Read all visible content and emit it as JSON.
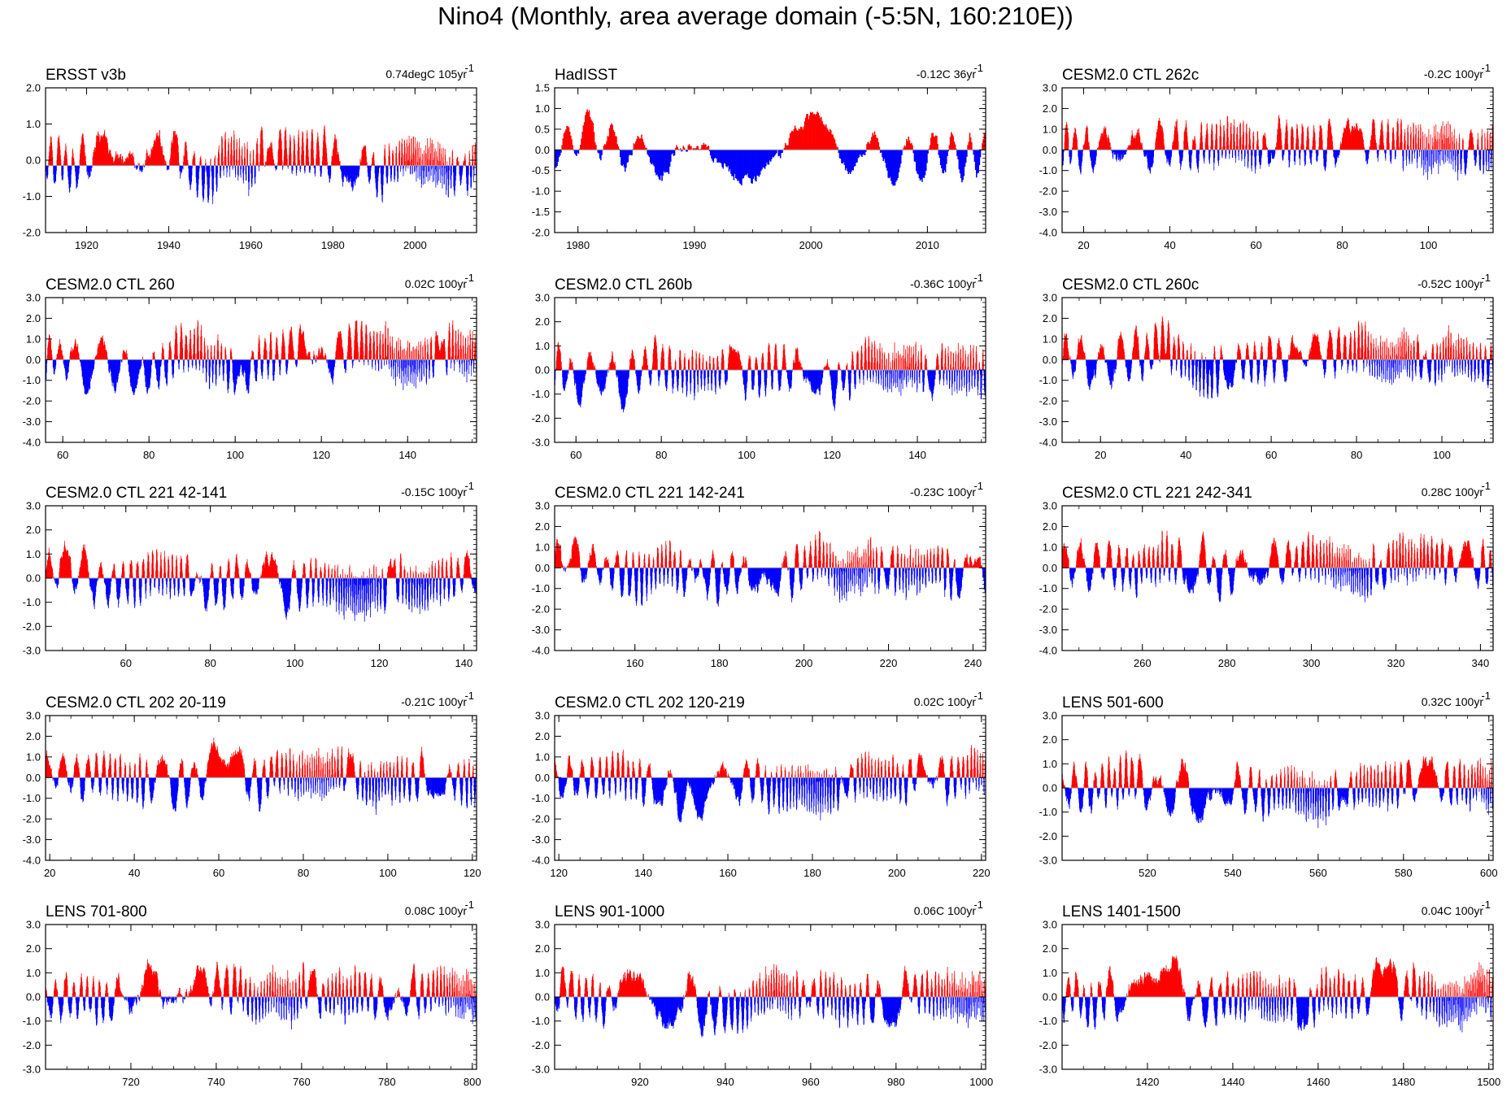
{
  "title": "Nino4 (Monthly, area average domain (-5:5N, 160:210E))",
  "colors": {
    "positive": "#ff0000",
    "negative": "#0000ff",
    "axis": "#000000",
    "zero": "#999999"
  },
  "chart_data": [
    {
      "type": "bar",
      "title": "ERSST v3b",
      "trend": "0.74degC 105yr",
      "trend_sup": "-1",
      "xlim": [
        1910,
        2015
      ],
      "ylim": [
        -2,
        2
      ],
      "yticks": [
        2.0,
        1.0,
        0.0,
        -1.0,
        -2.0
      ],
      "xticks": [
        1920,
        1940,
        1960,
        1980,
        2000
      ],
      "baseline": -0.15
    },
    {
      "type": "bar",
      "title": "HadISST",
      "trend": "-0.12C 36yr",
      "trend_sup": "-1",
      "xlim": [
        1978,
        2015
      ],
      "ylim": [
        -2,
        1.5
      ],
      "yticks": [
        1.5,
        1.0,
        0.5,
        0.0,
        -0.5,
        -1.0,
        -1.5,
        -2.0
      ],
      "xticks": [
        1980,
        1990,
        2000,
        2010
      ],
      "baseline": 0.0
    },
    {
      "type": "bar",
      "title": "CESM2.0 CTL 262c",
      "trend": "-0.2C 100yr",
      "trend_sup": "-1",
      "xlim": [
        15,
        115
      ],
      "ylim": [
        -4,
        3
      ],
      "yticks": [
        3.0,
        2.0,
        1.0,
        0.0,
        -1.0,
        -2.0,
        -3.0,
        -4.0
      ],
      "xticks": [
        20,
        40,
        60,
        80,
        100
      ],
      "baseline": 0.0
    },
    {
      "type": "bar",
      "title": "CESM2.0 CTL 260",
      "trend": "0.02C 100yr",
      "trend_sup": "-1",
      "xlim": [
        56,
        156
      ],
      "ylim": [
        -4,
        3
      ],
      "yticks": [
        3.0,
        2.0,
        1.0,
        0.0,
        -1.0,
        -2.0,
        -3.0,
        -4.0
      ],
      "xticks": [
        60,
        80,
        100,
        120,
        140
      ],
      "baseline": 0.0
    },
    {
      "type": "bar",
      "title": "CESM2.0 CTL 260b",
      "trend": "-0.36C 100yr",
      "trend_sup": "-1",
      "xlim": [
        55,
        156
      ],
      "ylim": [
        -3,
        3
      ],
      "yticks": [
        3.0,
        2.0,
        1.0,
        0.0,
        -1.0,
        -2.0,
        -3.0
      ],
      "xticks": [
        60,
        80,
        100,
        120,
        140
      ],
      "baseline": 0.0
    },
    {
      "type": "bar",
      "title": "CESM2.0 CTL 260c",
      "trend": "-0.52C 100yr",
      "trend_sup": "-1",
      "xlim": [
        11,
        112
      ],
      "ylim": [
        -4,
        3
      ],
      "yticks": [
        3.0,
        2.0,
        1.0,
        0.0,
        -1.0,
        -2.0,
        -3.0,
        -4.0
      ],
      "xticks": [
        20,
        40,
        60,
        80,
        100
      ],
      "baseline": 0.0
    },
    {
      "type": "bar",
      "title": "CESM2.0 CTL 221 42-141",
      "trend": "-0.15C 100yr",
      "trend_sup": "-1",
      "xlim": [
        41,
        143
      ],
      "ylim": [
        -3,
        3
      ],
      "yticks": [
        3.0,
        2.0,
        1.0,
        0.0,
        -1.0,
        -2.0,
        -3.0
      ],
      "xticks": [
        60,
        80,
        100,
        120,
        140
      ],
      "baseline": 0.0
    },
    {
      "type": "bar",
      "title": "CESM2.0 CTL 221 142-241",
      "trend": "-0.23C 100yr",
      "trend_sup": "-1",
      "xlim": [
        141,
        243
      ],
      "ylim": [
        -4,
        3
      ],
      "yticks": [
        3.0,
        2.0,
        1.0,
        0.0,
        -1.0,
        -2.0,
        -3.0,
        -4.0
      ],
      "xticks": [
        160,
        180,
        200,
        220,
        240
      ],
      "baseline": 0.0
    },
    {
      "type": "bar",
      "title": "CESM2.0 CTL 221 242-341",
      "trend": "0.28C 100yr",
      "trend_sup": "-1",
      "xlim": [
        241,
        343
      ],
      "ylim": [
        -4,
        3
      ],
      "yticks": [
        3.0,
        2.0,
        1.0,
        0.0,
        -1.0,
        -2.0,
        -3.0,
        -4.0
      ],
      "xticks": [
        260,
        280,
        300,
        320,
        340
      ],
      "baseline": 0.0
    },
    {
      "type": "bar",
      "title": "CESM2.0 CTL 202 20-119",
      "trend": "-0.21C 100yr",
      "trend_sup": "-1",
      "xlim": [
        19,
        121
      ],
      "ylim": [
        -4,
        3
      ],
      "yticks": [
        3.0,
        2.0,
        1.0,
        0.0,
        -1.0,
        -2.0,
        -3.0,
        -4.0
      ],
      "xticks": [
        20,
        40,
        60,
        80,
        100,
        120
      ],
      "baseline": 0.0
    },
    {
      "type": "bar",
      "title": "CESM2.0 CTL 202 120-219",
      "trend": "0.02C 100yr",
      "trend_sup": "-1",
      "xlim": [
        119,
        221
      ],
      "ylim": [
        -4,
        3
      ],
      "yticks": [
        3.0,
        2.0,
        1.0,
        0.0,
        -1.0,
        -2.0,
        -3.0,
        -4.0
      ],
      "xticks": [
        120,
        140,
        160,
        180,
        200,
        220
      ],
      "baseline": 0.0
    },
    {
      "type": "bar",
      "title": "LENS 501-600",
      "trend": "0.32C 100yr",
      "trend_sup": "-1",
      "xlim": [
        500,
        601
      ],
      "ylim": [
        -3,
        3
      ],
      "yticks": [
        3.0,
        2.0,
        1.0,
        0.0,
        -1.0,
        -2.0,
        -3.0
      ],
      "xticks": [
        520,
        540,
        560,
        580,
        600
      ],
      "baseline": 0.0
    },
    {
      "type": "bar",
      "title": "LENS 701-800",
      "trend": "0.08C 100yr",
      "trend_sup": "-1",
      "xlim": [
        700,
        801
      ],
      "ylim": [
        -3,
        3
      ],
      "yticks": [
        3.0,
        2.0,
        1.0,
        0.0,
        -1.0,
        -2.0,
        -3.0
      ],
      "xticks": [
        720,
        740,
        760,
        780,
        800
      ],
      "baseline": 0.0
    },
    {
      "type": "bar",
      "title": "LENS 901-1000",
      "trend": "0.06C 100yr",
      "trend_sup": "-1",
      "xlim": [
        900,
        1001
      ],
      "ylim": [
        -3,
        3
      ],
      "yticks": [
        3.0,
        2.0,
        1.0,
        0.0,
        -1.0,
        -2.0,
        -3.0
      ],
      "xticks": [
        920,
        940,
        960,
        980,
        1000
      ],
      "baseline": 0.0
    },
    {
      "type": "bar",
      "title": "LENS 1401-1500",
      "trend": "0.04C 100yr",
      "trend_sup": "-1",
      "xlim": [
        1400,
        1501
      ],
      "ylim": [
        -3,
        3
      ],
      "yticks": [
        3.0,
        2.0,
        1.0,
        0.0,
        -1.0,
        -2.0,
        -3.0
      ],
      "xticks": [
        1420,
        1440,
        1460,
        1480,
        1500
      ],
      "baseline": 0.0
    }
  ]
}
